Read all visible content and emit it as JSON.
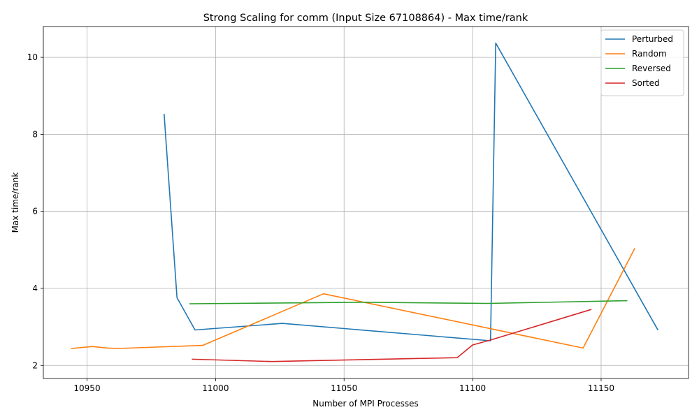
{
  "chart_data": {
    "type": "line",
    "title": "Strong Scaling for comm (Input Size 67108864) - Max time/rank",
    "xlabel": "Number of MPI Processes",
    "ylabel": "Max time/rank",
    "xlim": [
      10933,
      11184
    ],
    "ylim": [
      1.66,
      10.8
    ],
    "xticks": [
      10950,
      11000,
      11050,
      11100,
      11150
    ],
    "yticks": [
      2,
      4,
      6,
      8,
      10
    ],
    "grid": true,
    "legend_position": "top-right",
    "series": [
      {
        "name": "Perturbed",
        "color": "#1f77b4",
        "x": [
          10980,
          10985,
          10992,
          11026,
          11107,
          11107,
          11109,
          11172
        ],
        "y": [
          8.52,
          3.76,
          2.92,
          3.09,
          2.64,
          2.7,
          10.37,
          2.93
        ]
      },
      {
        "name": "Random",
        "color": "#ff7f0e",
        "x": [
          10944,
          10952,
          10958,
          10962,
          10995,
          11042,
          11143,
          11163
        ],
        "y": [
          2.44,
          2.49,
          2.45,
          2.44,
          2.52,
          3.86,
          2.45,
          5.03
        ]
      },
      {
        "name": "Reversed",
        "color": "#2ca02c",
        "x": [
          10990,
          11058,
          11106,
          11160
        ],
        "y": [
          3.6,
          3.64,
          3.61,
          3.68
        ]
      },
      {
        "name": "Sorted",
        "color": "#d62728",
        "x": [
          10991,
          11022,
          11094,
          11100,
          11107,
          11146
        ],
        "y": [
          2.16,
          2.1,
          2.2,
          2.53,
          2.66,
          3.45
        ]
      }
    ]
  }
}
